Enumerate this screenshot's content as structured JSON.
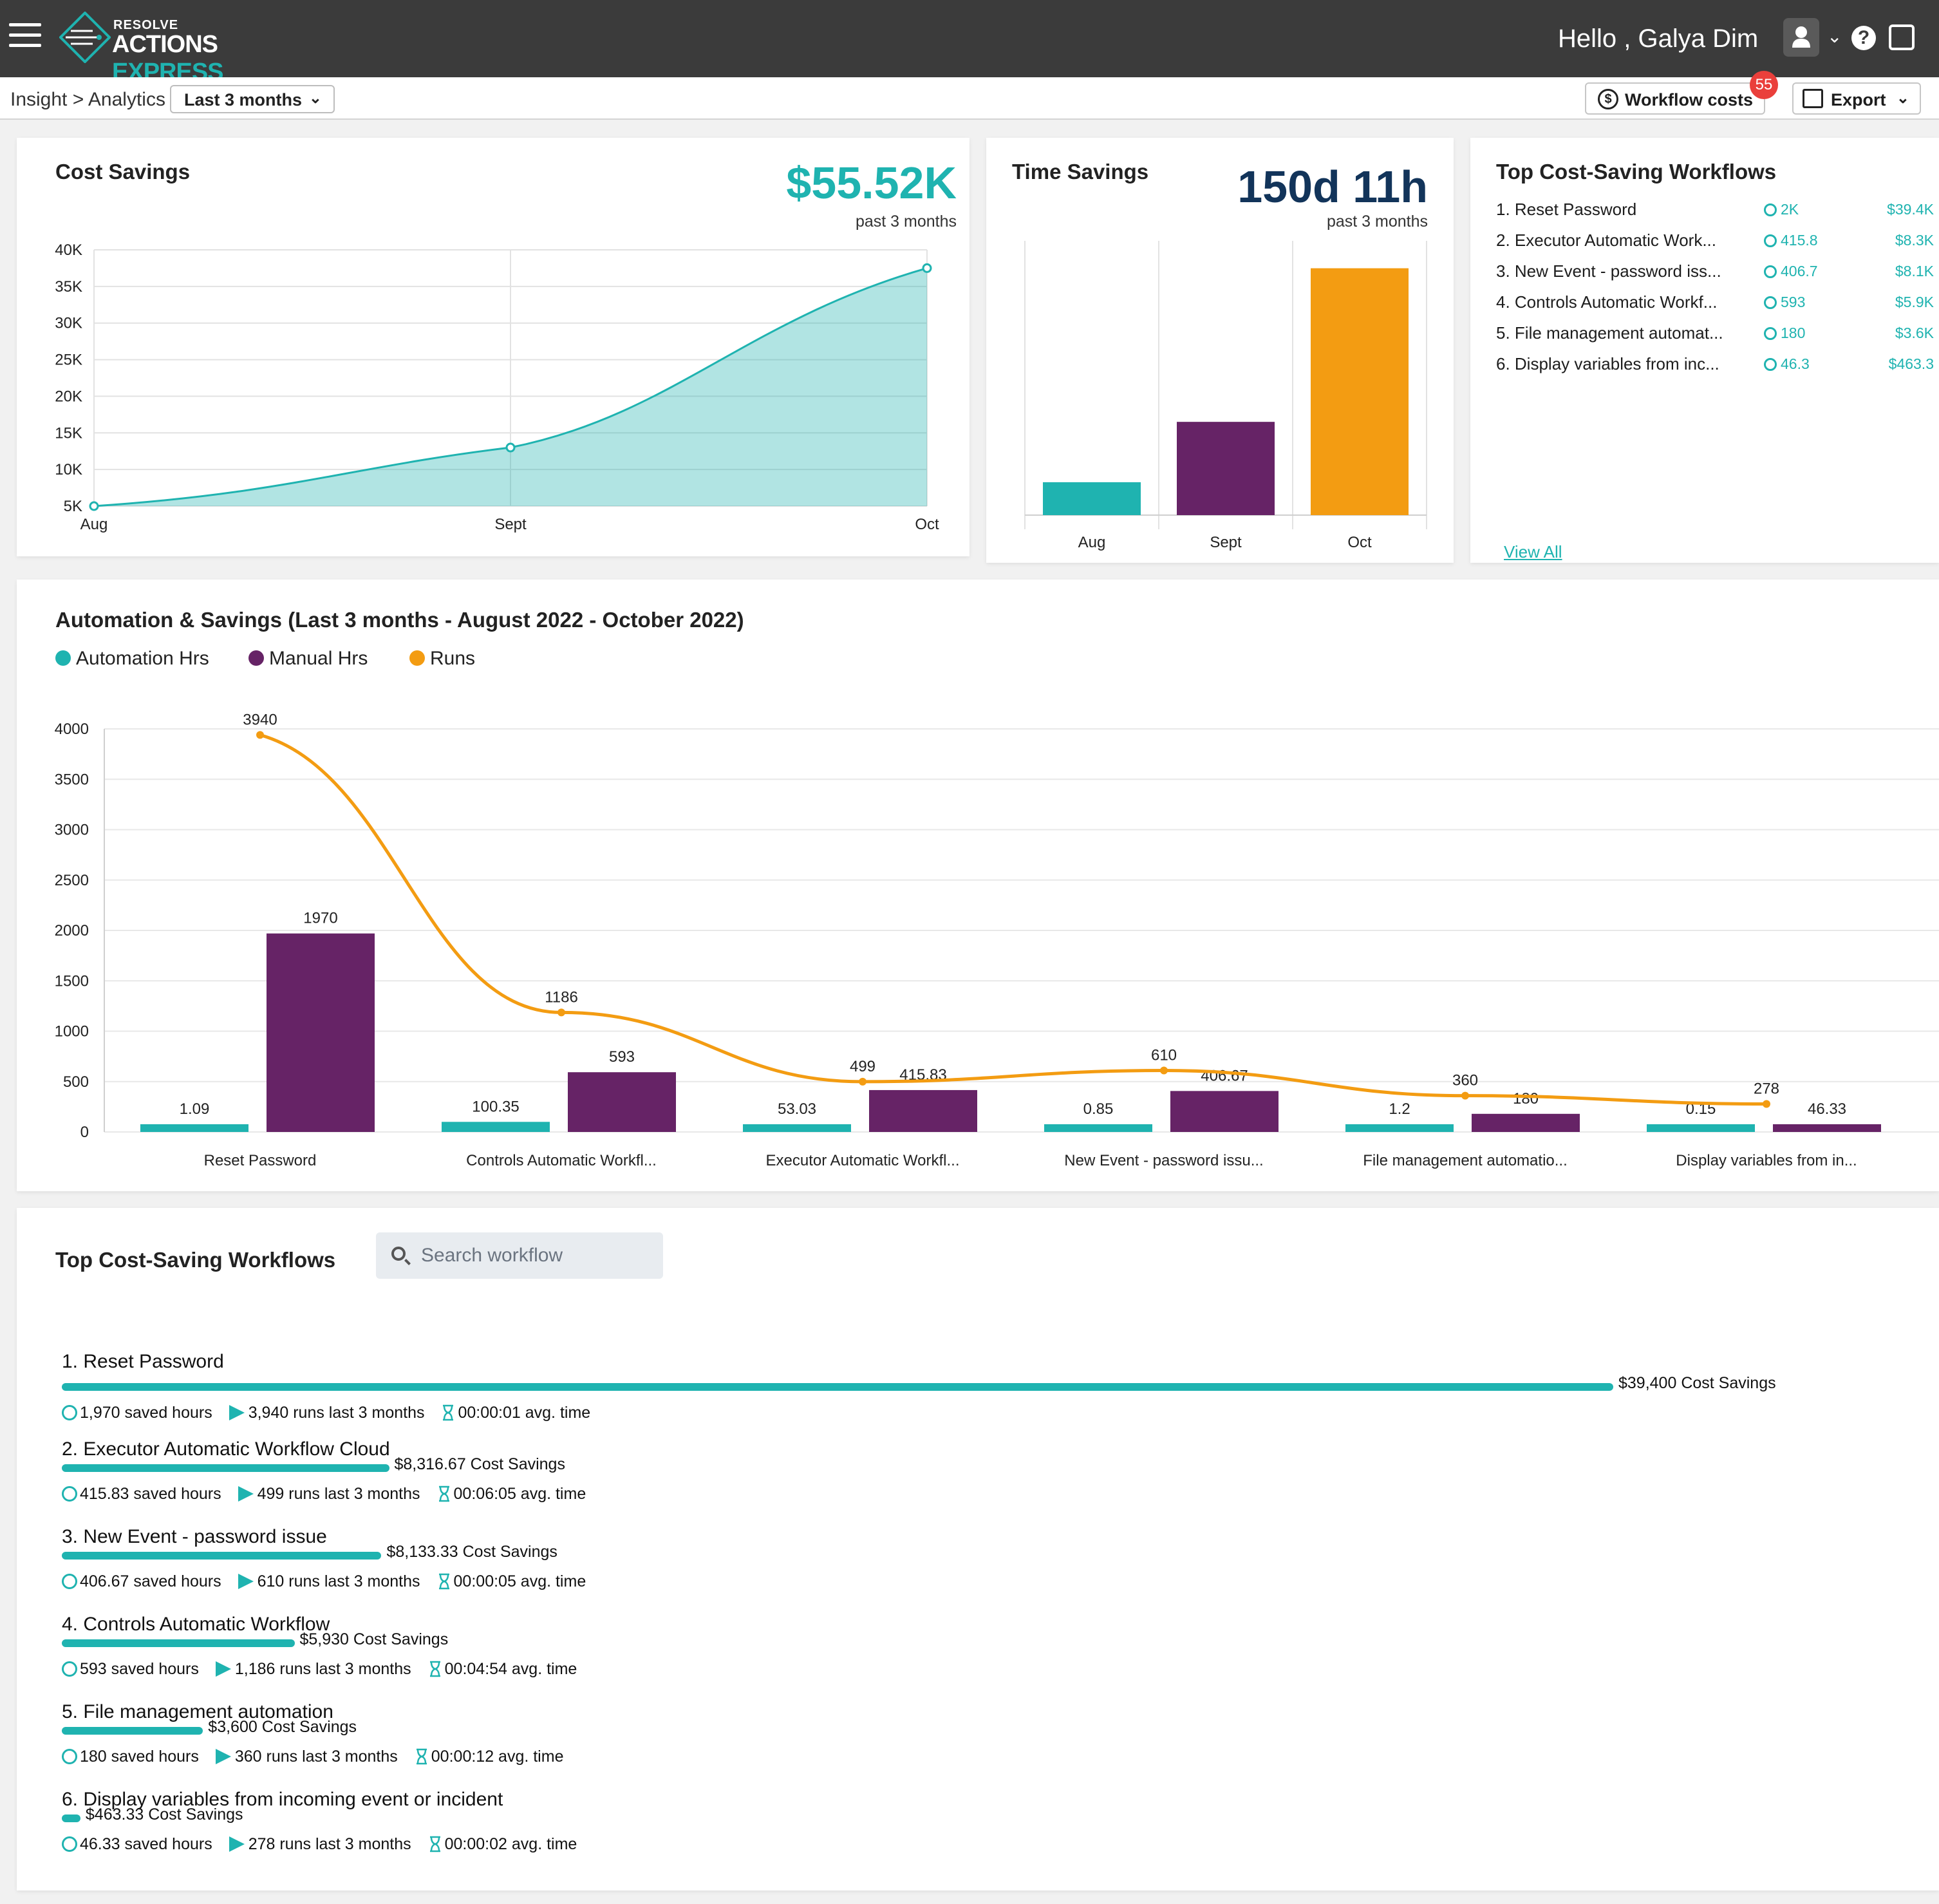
{
  "app": {
    "logo_top": "RESOLVE",
    "logo_word1": "ACTIONS",
    "logo_word2": "EXPRESS",
    "greeting": "Hello , Galya Dim"
  },
  "subbar": {
    "breadcrumb": "Insight > Analytics",
    "range": "Last 3 months",
    "workflow_costs": "Workflow costs",
    "badge_count": "55",
    "export": "Export"
  },
  "cost_savings": {
    "title": "Cost Savings",
    "value": "$55.52K",
    "note": "past 3 months",
    "color": "#1fb3b0",
    "chart_data": {
      "type": "area",
      "categories": [
        "Aug",
        "Sept",
        "Oct"
      ],
      "values": [
        5000,
        13000,
        37500
      ],
      "ylim": [
        5000,
        40000
      ],
      "yticks": [
        "5K",
        "10K",
        "15K",
        "20K",
        "25K",
        "30K",
        "35K",
        "40K"
      ],
      "grid": true
    }
  },
  "time_savings": {
    "title": "Time Savings",
    "value": "150d 11h",
    "note": "past 3 months",
    "chart_data": {
      "type": "bar",
      "categories": [
        "Aug",
        "Sept",
        "Oct"
      ],
      "values": [
        12,
        34,
        90
      ],
      "colors": [
        "#1fb3b0",
        "#662366",
        "#f39c12"
      ]
    }
  },
  "top_list": {
    "title": "Top Cost-Saving Workflows",
    "rows": [
      {
        "name": "1. Reset Password",
        "hours": "2K",
        "cost": "$39.4K"
      },
      {
        "name": "2. Executor Automatic Work...",
        "hours": "415.8",
        "cost": "$8.3K"
      },
      {
        "name": "3. New Event - password iss...",
        "hours": "406.7",
        "cost": "$8.1K"
      },
      {
        "name": "4. Controls Automatic Workf...",
        "hours": "593",
        "cost": "$5.9K"
      },
      {
        "name": "5. File management automat...",
        "hours": "180",
        "cost": "$3.6K"
      },
      {
        "name": "6. Display variables from inc...",
        "hours": "46.3",
        "cost": "$463.3"
      }
    ],
    "view_all": "View All"
  },
  "automation": {
    "title": "Automation & Savings (Last 3 months - August 2022 - October 2022)",
    "legend": [
      {
        "label": "Automation Hrs",
        "color": "#1fb3b0"
      },
      {
        "label": "Manual Hrs",
        "color": "#662366"
      },
      {
        "label": "Runs",
        "color": "#f39c12"
      }
    ],
    "chart_data": {
      "type": "bar",
      "categories": [
        "Reset Password",
        "Controls Automatic Workfl...",
        "Executor Automatic Workfl...",
        "New Event - password issu...",
        "File management automatio...",
        "Display variables from in..."
      ],
      "series": [
        {
          "name": "Automation Hrs",
          "values": [
            1.09,
            100.35,
            53.03,
            0.85,
            1.2,
            0.15
          ],
          "labels": [
            "1.09",
            "100.35",
            "53.03",
            "0.85",
            "1.2",
            "0.15"
          ]
        },
        {
          "name": "Manual Hrs",
          "values": [
            1970,
            593,
            415.83,
            406.67,
            180,
            46.33
          ],
          "labels": [
            "1970",
            "593",
            "415.83",
            "406.67",
            "180",
            "46.33"
          ]
        },
        {
          "name": "Runs",
          "values": [
            3940,
            1186,
            499,
            610,
            360,
            278
          ],
          "labels": [
            "3940",
            "1186",
            "499",
            "610",
            "360",
            "278"
          ]
        }
      ],
      "ylim": [
        0,
        4000
      ],
      "yticks": [
        "0",
        "500",
        "1000",
        "1500",
        "2000",
        "2500",
        "3000",
        "3500",
        "4000"
      ],
      "grid": true
    }
  },
  "workflows": {
    "title": "Top Cost-Saving Workflows",
    "search_placeholder": "Search workflow",
    "rows": [
      {
        "name": "1. Reset Password",
        "savings": "$39,400 Cost Savings",
        "fraction": 1.0,
        "hours": "1,970 saved hours",
        "runs": "3,940 runs last 3 months",
        "avg": "00:00:01 avg. time"
      },
      {
        "name": "2. Executor Automatic Workflow Cloud",
        "savings": "$8,316.67 Cost Savings",
        "fraction": 0.211,
        "hours": "415.83 saved hours",
        "runs": "499 runs last 3 months",
        "avg": "00:06:05 avg. time"
      },
      {
        "name": "3. New Event - password issue",
        "savings": "$8,133.33 Cost Savings",
        "fraction": 0.206,
        "hours": "406.67 saved hours",
        "runs": "610 runs last 3 months",
        "avg": "00:00:05 avg. time"
      },
      {
        "name": "4. Controls Automatic Workflow",
        "savings": "$5,930 Cost Savings",
        "fraction": 0.15,
        "hours": "593 saved hours",
        "runs": "1,186 runs last 3 months",
        "avg": "00:04:54 avg. time"
      },
      {
        "name": "5. File management automation",
        "savings": "$3,600 Cost Savings",
        "fraction": 0.091,
        "hours": "180 saved hours",
        "runs": "360 runs last 3 months",
        "avg": "00:00:12 avg. time"
      },
      {
        "name": "6. Display variables from incoming event or incident",
        "savings": "$463.33 Cost Savings",
        "fraction": 0.012,
        "hours": "46.33 saved hours",
        "runs": "278 runs last 3 months",
        "avg": "00:00:02 avg. time"
      }
    ]
  }
}
